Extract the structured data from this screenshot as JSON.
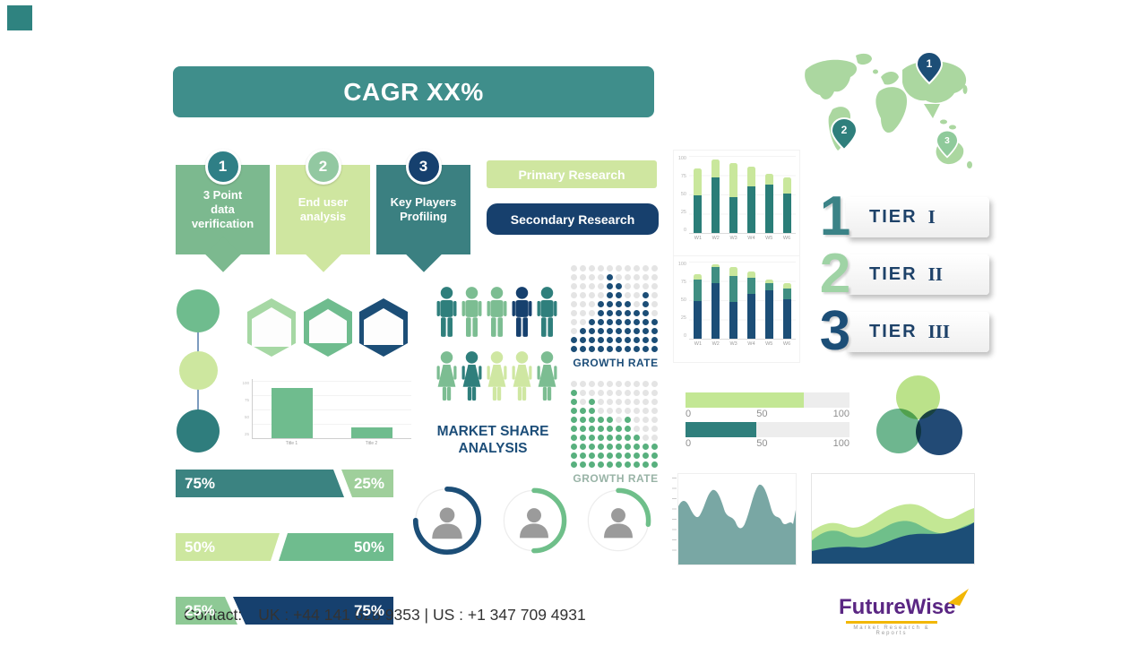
{
  "corner": {
    "color": "#2f8380"
  },
  "banner": {
    "label": "CAGR XX%",
    "bg": "#3f8e8b"
  },
  "ribbons": [
    {
      "num": "1",
      "label": "3 Point\ndata\nverification",
      "bg": "#7cb98f",
      "badge": "#2f7f86"
    },
    {
      "num": "2",
      "label": "End user\nanalysis",
      "bg": "#cfe6a0",
      "badge": "#92c8a1"
    },
    {
      "num": "3",
      "label": "Key Players\nProfiling",
      "bg": "#3b8081",
      "badge": "#16406e"
    }
  ],
  "bubbles": [
    {
      "label": "Primary Research",
      "bg": "#cfe6a0"
    },
    {
      "label": "Secondary Research",
      "bg": "#17406d"
    }
  ],
  "stacked_charts": [
    {
      "x_labels": [
        "W1",
        "W2",
        "W3",
        "W4",
        "W5",
        "W6"
      ],
      "y_ticks": [
        "100",
        "75",
        "50",
        "25",
        "0"
      ],
      "series": [
        {
          "name": "bottom",
          "color": "#2a7d78",
          "values": [
            52,
            78,
            50,
            65,
            67,
            55
          ]
        },
        {
          "name": "top",
          "color": "#c9e79c",
          "values": [
            38,
            25,
            48,
            28,
            16,
            23
          ]
        }
      ]
    },
    {
      "x_labels": [
        "W1",
        "W2",
        "W3",
        "W4",
        "W5",
        "W6"
      ],
      "y_ticks": [
        "100",
        "75",
        "50",
        "25",
        "0"
      ],
      "series": [
        {
          "name": "bottom",
          "color": "#1c4e77",
          "values": [
            53,
            78,
            51,
            62,
            67,
            55
          ]
        },
        {
          "name": "middle",
          "color": "#3f8e82",
          "values": [
            30,
            22,
            37,
            23,
            11,
            15
          ]
        },
        {
          "name": "top",
          "color": "#c9e79c",
          "values": [
            7,
            4,
            12,
            9,
            5,
            8
          ]
        }
      ]
    }
  ],
  "map": {
    "land_color": "#abd7a0",
    "pins": [
      {
        "num": "1",
        "color": "#1c4e77"
      },
      {
        "num": "2",
        "color": "#2f7f7c"
      },
      {
        "num": "3",
        "color": "#8fca9b"
      }
    ]
  },
  "tiers": [
    {
      "num": "1",
      "num_color": "#3b8387",
      "label": "TIER",
      "numeral": "I"
    },
    {
      "num": "2",
      "num_color": "#9fd3a5",
      "label": "TIER",
      "numeral": "II"
    },
    {
      "num": "3",
      "num_color": "#1c4e77",
      "label": "TIER",
      "numeral": "III"
    }
  ],
  "dot_charts": [
    {
      "label": "GROWTH RATE",
      "label_color": "#1d4e79",
      "dot_color": "#1c4e77",
      "empty_color": "#e4e4e4",
      "cols": 10,
      "rows": 10,
      "heights": [
        2,
        3,
        4,
        6,
        9,
        8,
        6,
        5,
        7,
        4
      ]
    },
    {
      "label": "GROWTH RATE",
      "label_color": "#98b3a6",
      "dot_color": "#58b07e",
      "empty_color": "#e4e4e4",
      "cols": 10,
      "rows": 10,
      "heights": [
        9,
        7,
        8,
        6,
        6,
        5,
        6,
        4,
        3,
        3
      ]
    }
  ],
  "people": {
    "caption": "MARKET SHARE ANALYSIS",
    "rows": [
      {
        "type": "male",
        "colors": [
          "#2f7f7c",
          "#7cbd92",
          "#7cbd92",
          "#16406e",
          "#2f7f7c"
        ]
      },
      {
        "type": "female",
        "colors": [
          "#7cbd92",
          "#2f7f7c",
          "#cfe7a2",
          "#cfe7a2",
          "#7cbd92"
        ]
      }
    ]
  },
  "chain_circles": {
    "colors": [
      "#6fbc8e",
      "#cde79f",
      "#2f7d7d"
    ]
  },
  "hexagons": {
    "colors": [
      "#a6d8a4",
      "#6fbc8e",
      "#1c4e77"
    ]
  },
  "mini_bar": {
    "values": [
      85,
      18
    ],
    "color": "#6fbc8e",
    "x_labels": [
      "Title 1",
      "Title 2"
    ],
    "y_ticks": [
      "100",
      "75",
      "50",
      "25"
    ]
  },
  "split_bars": [
    {
      "left": {
        "label": "75%",
        "pct": 75,
        "color": "#3b8381"
      },
      "right": {
        "label": "25%",
        "pct": 25,
        "color": "#9fcf9b"
      }
    },
    {
      "left": {
        "label": "50%",
        "pct": 50,
        "color": "#cde79f"
      },
      "right": {
        "label": "50%",
        "pct": 50,
        "color": "#6fbc8e"
      }
    },
    {
      "left": {
        "label": "25%",
        "pct": 25,
        "color": "#8ec995"
      },
      "right": {
        "label": "75%",
        "pct": 75,
        "color": "#16406e"
      }
    }
  ],
  "gauges": [
    {
      "percent": 75,
      "color": "#1c4e77"
    },
    {
      "percent": 50,
      "color": "#6fbf8a"
    },
    {
      "percent": 27,
      "color": "#6fbf8a"
    }
  ],
  "sliders": [
    {
      "pct": 72,
      "color": "#c3e794",
      "ticks": [
        "0",
        "50",
        "100"
      ]
    },
    {
      "pct": 43,
      "color": "#2f7f7c",
      "ticks": [
        "0",
        "50",
        "100"
      ]
    }
  ],
  "venn": {
    "colors": [
      "#b8e184",
      "#66b289",
      "#16406e"
    ]
  },
  "area_charts": {
    "mono_color": "#79a7a4",
    "wave_colors": [
      "#c3e794",
      "#6fbf8a",
      "#1c4e77"
    ]
  },
  "contact": {
    "label": "Contact:",
    "value": "UK : +44 141 628 9353  |  US :  +1 347 709 4931"
  },
  "logo": {
    "name": "FutureWise",
    "tagline": "Market Research & Reports",
    "name_color": "#5a2683",
    "accent": "#f2b705"
  }
}
